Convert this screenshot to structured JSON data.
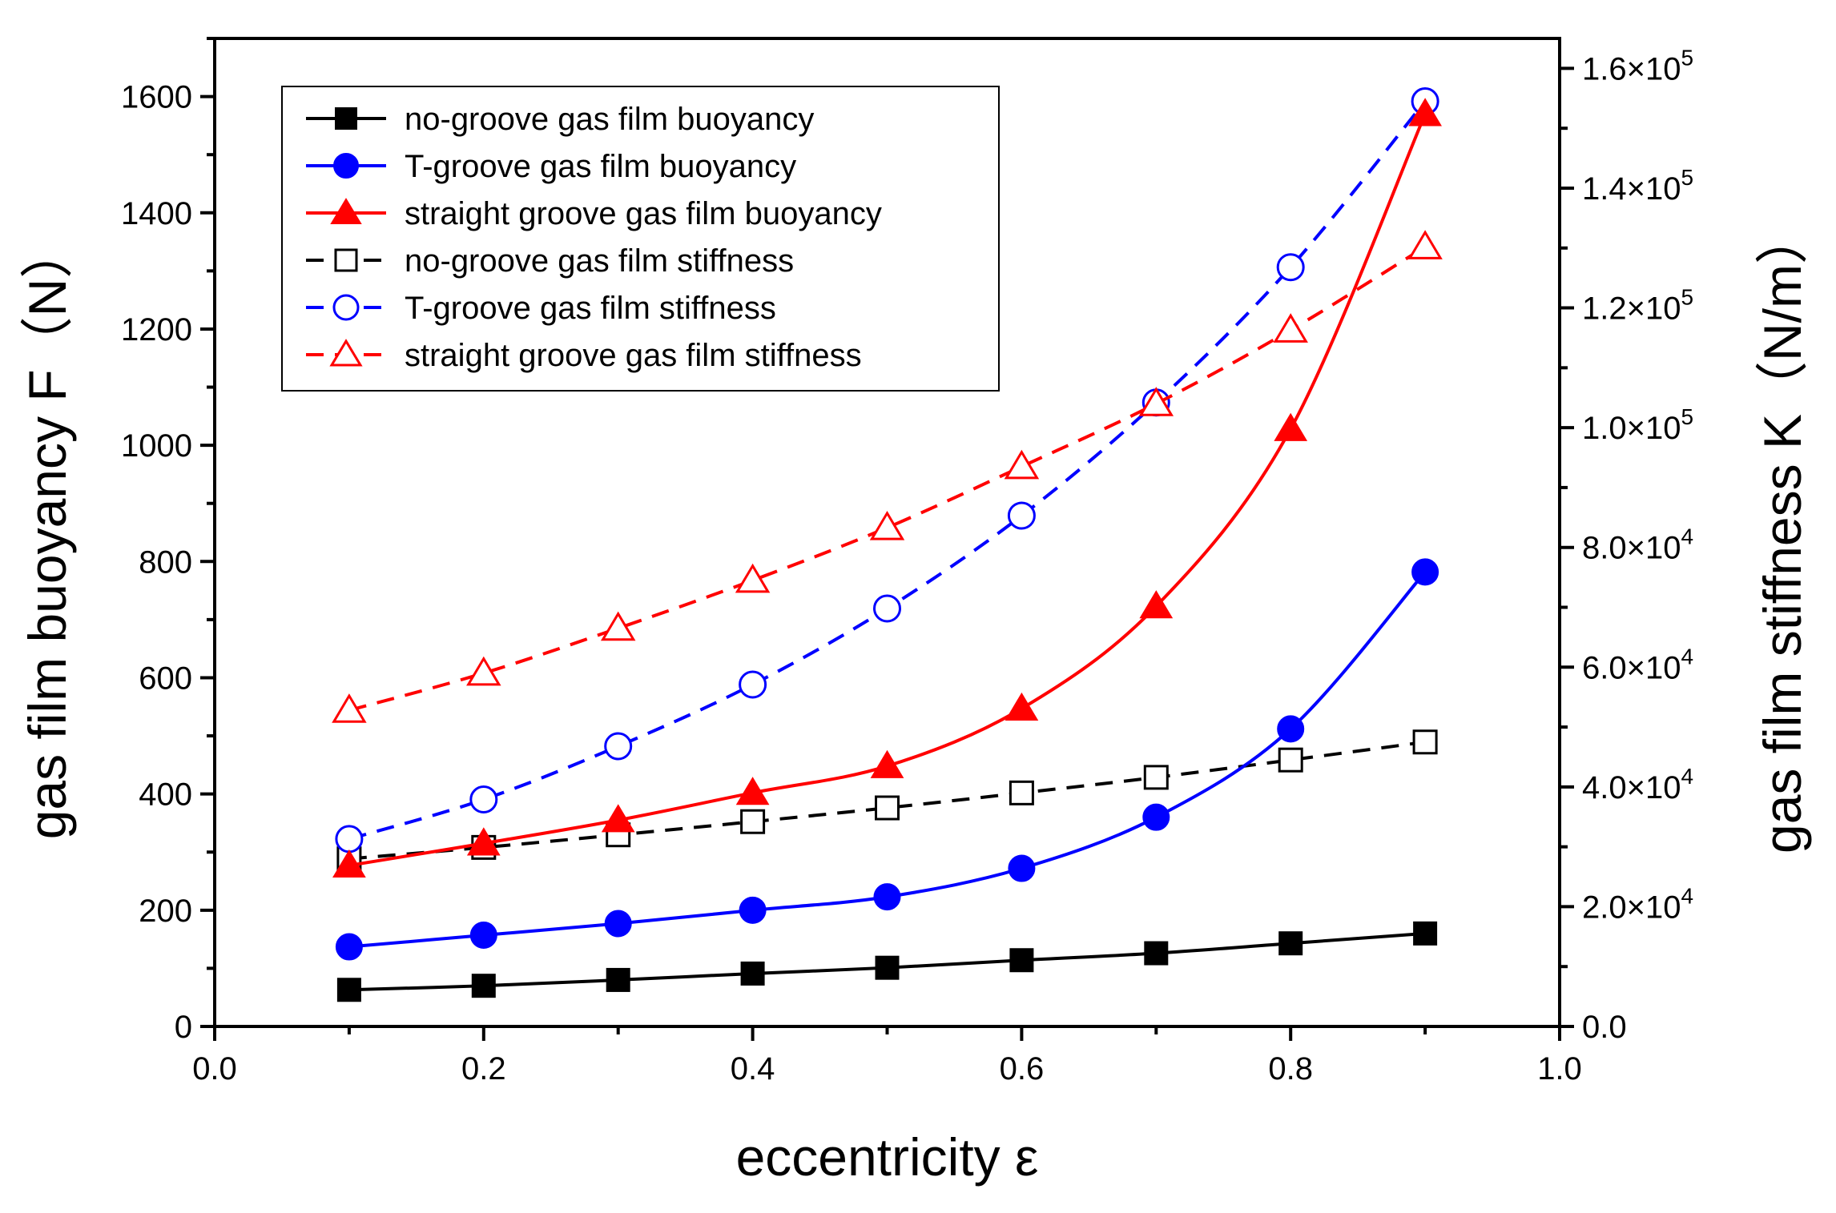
{
  "chart_data": {
    "type": "line",
    "xlabel": "eccentricity ε",
    "ylabel_left": "gas film buoyancy F（N）",
    "ylabel_right": "gas film stiffness K（N/m）",
    "xlim": [
      0.0,
      1.0
    ],
    "ylim_left": [
      0,
      1700
    ],
    "ylim_right": [
      0,
      165000
    ],
    "x_ticks": [
      0.0,
      0.2,
      0.4,
      0.6,
      0.8,
      1.0
    ],
    "x_tick_labels": [
      "0.0",
      "0.2",
      "0.4",
      "0.6",
      "0.8",
      "1.0"
    ],
    "y_left_ticks": [
      0,
      200,
      400,
      600,
      800,
      1000,
      1200,
      1400,
      1600
    ],
    "y_left_tick_labels": [
      "0",
      "200",
      "400",
      "600",
      "800",
      "1000",
      "1200",
      "1400",
      "1600"
    ],
    "y_right_ticks": [
      0,
      20000,
      40000,
      60000,
      80000,
      100000,
      120000,
      140000,
      160000
    ],
    "y_right_tick_labels": [
      {
        "mantissa": "0.0",
        "exp": ""
      },
      {
        "mantissa": "2.0×10",
        "exp": "4"
      },
      {
        "mantissa": "4.0×10",
        "exp": "4"
      },
      {
        "mantissa": "6.0×10",
        "exp": "4"
      },
      {
        "mantissa": "8.0×10",
        "exp": "4"
      },
      {
        "mantissa": "1.0×10",
        "exp": "5"
      },
      {
        "mantissa": "1.2×10",
        "exp": "5"
      },
      {
        "mantissa": "1.4×10",
        "exp": "5"
      },
      {
        "mantissa": "1.6×10",
        "exp": "5"
      }
    ],
    "x": [
      0.1,
      0.2,
      0.3,
      0.4,
      0.5,
      0.6,
      0.7,
      0.8,
      0.9
    ],
    "legend_position": "top-left",
    "series": [
      {
        "name": "no-groove gas film buoyancy",
        "axis": "left",
        "color": "#000000",
        "dash": false,
        "marker": "square",
        "filled": true,
        "values": [
          63,
          70,
          80,
          91,
          101,
          114,
          126,
          143,
          160
        ]
      },
      {
        "name": "T-groove gas film buoyancy",
        "axis": "left",
        "color": "#0000ff",
        "dash": false,
        "marker": "circle",
        "filled": true,
        "values": [
          137,
          157,
          177,
          200,
          223,
          272,
          360,
          512,
          782
        ]
      },
      {
        "name": "straight groove gas film buoyancy",
        "axis": "left",
        "color": "#ff0000",
        "dash": false,
        "marker": "triangle",
        "filled": true,
        "values": [
          277,
          315,
          355,
          402,
          448,
          547,
          723,
          1028,
          1570
        ]
      },
      {
        "name": "no-groove gas film stiffness",
        "axis": "right",
        "color": "#000000",
        "dash": true,
        "marker": "square",
        "filled": false,
        "values": [
          28000,
          29900,
          32000,
          34200,
          36500,
          39000,
          41600,
          44500,
          47500
        ]
      },
      {
        "name": "T-groove gas film stiffness",
        "axis": "right",
        "color": "#0000ff",
        "dash": true,
        "marker": "circle",
        "filled": false,
        "values": [
          31300,
          37900,
          46800,
          57100,
          69800,
          85300,
          104200,
          126800,
          154500
        ]
      },
      {
        "name": "straight groove gas film stiffness",
        "axis": "right",
        "color": "#ff0000",
        "dash": true,
        "marker": "triangle",
        "filled": false,
        "values": [
          52800,
          59000,
          66500,
          74500,
          83300,
          93500,
          104000,
          116300,
          130200
        ]
      }
    ]
  }
}
